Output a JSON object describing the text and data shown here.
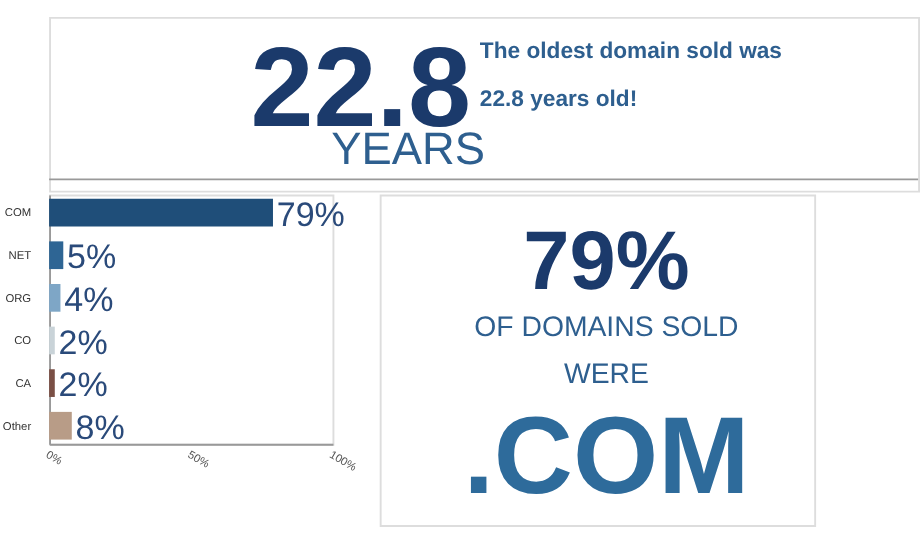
{
  "chart_data": {
    "type": "bar",
    "orientation": "horizontal",
    "categories": [
      "COM",
      "NET",
      "ORG",
      "CO",
      "CA",
      "Other"
    ],
    "values": [
      79,
      5,
      4,
      2,
      2,
      8
    ],
    "colors": [
      "#1f4e79",
      "#2e6594",
      "#7ea6c6",
      "#c9d3d8",
      "#7a4f45",
      "#b89c87"
    ],
    "value_labels": [
      "79%",
      "5%",
      "4%",
      "2%",
      "2%",
      "8%"
    ],
    "xlim": [
      0,
      100
    ],
    "xticks": [
      {
        "value": 0,
        "label": "0%"
      },
      {
        "value": 50,
        "label": "50%"
      },
      {
        "value": 100,
        "label": "100%"
      }
    ],
    "annotations": [
      "22.8",
      "YEARS",
      "The oldest domain sold was",
      "22.8 years old!",
      "79%",
      "OF DOMAINS SOLD",
      "WERE",
      ".COM"
    ]
  }
}
